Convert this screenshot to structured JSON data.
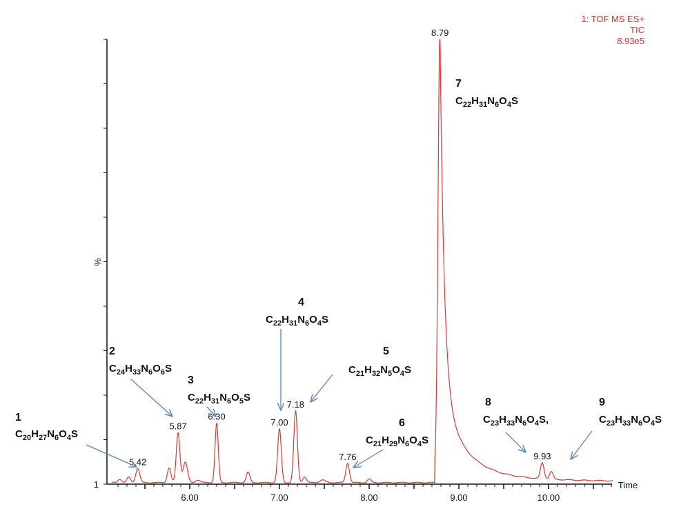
{
  "header": {
    "line1": "1: TOF MS ES+",
    "line2": "TIC",
    "line3": "8.93e5"
  },
  "colors": {
    "trace": "#d43a3a",
    "arrow": "#5a86b8",
    "header": "#e03030",
    "axis": "#111111"
  },
  "chart_data": {
    "type": "line",
    "title": "1: TOF MS ES+ TIC 8.93e5",
    "xlabel": "Time",
    "ylabel": "%",
    "xlim": [
      5.1,
      10.72
    ],
    "ylim": [
      0,
      100
    ],
    "y_tick_labels": [
      "1"
    ],
    "x_ticks": [
      6.0,
      7.0,
      8.0,
      9.0,
      10.0
    ],
    "x_tick_labels": [
      "6.00",
      "7.00",
      "8.00",
      "9.00",
      "10.00"
    ],
    "grid": false,
    "peaks": [
      {
        "rt": 5.22,
        "height": 0.8,
        "width": 0.02
      },
      {
        "rt": 5.32,
        "height": 1.2,
        "width": 0.02
      },
      {
        "rt": 5.42,
        "height": 3.2,
        "width": 0.022,
        "label": "5.42"
      },
      {
        "rt": 5.77,
        "height": 3.3,
        "width": 0.02
      },
      {
        "rt": 5.87,
        "height": 11.2,
        "width": 0.02,
        "label": "5.87"
      },
      {
        "rt": 5.95,
        "height": 4.6,
        "width": 0.025
      },
      {
        "rt": 6.09,
        "height": 0.6,
        "width": 0.025
      },
      {
        "rt": 6.3,
        "height": 13.3,
        "width": 0.018,
        "label": "6.30"
      },
      {
        "rt": 6.65,
        "height": 2.3,
        "width": 0.02
      },
      {
        "rt": 7.0,
        "height": 12.0,
        "width": 0.02,
        "label": "7.00"
      },
      {
        "rt": 7.18,
        "height": 16.0,
        "width": 0.02,
        "label": "7.18"
      },
      {
        "rt": 7.28,
        "height": 1.3,
        "width": 0.02
      },
      {
        "rt": 7.48,
        "height": 0.6,
        "width": 0.03
      },
      {
        "rt": 7.76,
        "height": 4.4,
        "width": 0.02,
        "label": "7.76"
      },
      {
        "rt": 8.0,
        "height": 0.8,
        "width": 0.02
      },
      {
        "rt": 9.93,
        "height": 3.6,
        "width": 0.02,
        "label": "9.93"
      },
      {
        "rt": 10.03,
        "height": 1.7,
        "width": 0.02
      }
    ],
    "main_peak": {
      "rt": 8.79,
      "height": 100,
      "label": "8.79",
      "onset": 8.73
    },
    "annotations": [
      {
        "number": "1",
        "formula": "C20H27N6O4S",
        "peak_rt": 5.42
      },
      {
        "number": "2",
        "formula": "C24H33N6O6S",
        "peak_rt": 5.87
      },
      {
        "number": "3",
        "formula": "C22H31N6O5S",
        "peak_rt": 6.3
      },
      {
        "number": "4",
        "formula": "C22H31N6O4S",
        "peak_rt": 7.0
      },
      {
        "number": "5",
        "formula": "C21H32N5O4S",
        "peak_rt": 7.18
      },
      {
        "number": "6",
        "formula": "C21H29N6O4S",
        "peak_rt": 7.76
      },
      {
        "number": "7",
        "formula": "C22H31N6O4S",
        "peak_rt": 8.79
      },
      {
        "number": "8",
        "formula": "C23H33N6O4S,",
        "peak_rt": 9.93
      },
      {
        "number": "9",
        "formula": "C23H33N6O4S",
        "peak_rt": 10.03
      }
    ]
  }
}
